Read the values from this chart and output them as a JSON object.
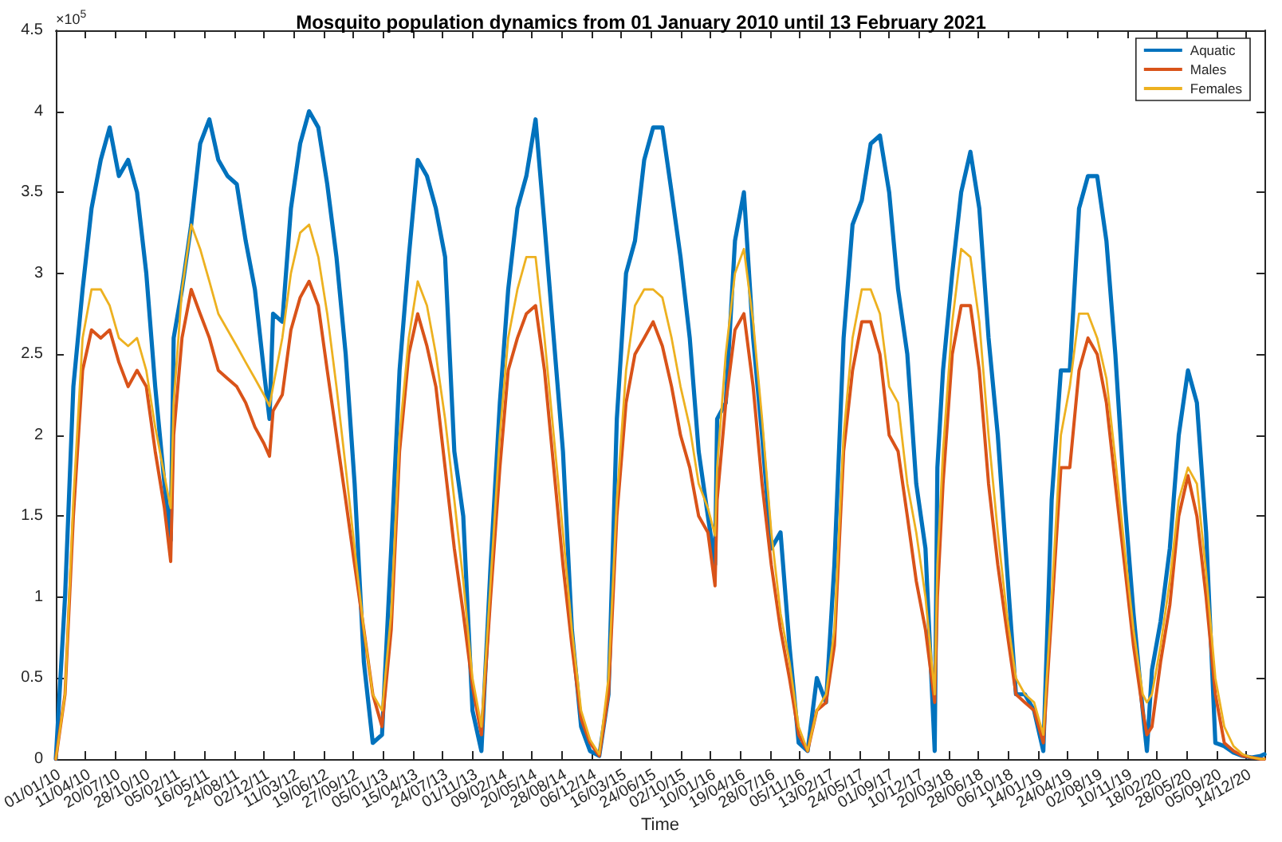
{
  "chart_data": {
    "type": "line",
    "title": "Mosquito population dynamics from 01 January 2010 until 13 February 2021",
    "xlabel": "Time",
    "annotations": [
      "×10$^{5}$"
    ],
    "x": [
      "2010-01-01",
      "2010-02-01",
      "2010-03-01",
      "2010-04-01",
      "2010-05-01",
      "2010-06-01",
      "2010-07-01",
      "2010-08-01",
      "2010-09-01",
      "2010-10-01",
      "2010-11-01",
      "2010-12-01",
      "2011-01-01",
      "2011-01-22",
      "2011-02-01",
      "2011-03-01",
      "2011-04-01",
      "2011-05-01",
      "2011-06-01",
      "2011-07-01",
      "2011-08-01",
      "2011-09-01",
      "2011-10-01",
      "2011-11-01",
      "2011-12-01",
      "2011-12-20",
      "2012-01-01",
      "2012-02-01",
      "2012-03-01",
      "2012-04-01",
      "2012-05-01",
      "2012-06-01",
      "2012-07-01",
      "2012-08-01",
      "2012-09-01",
      "2012-10-01",
      "2012-11-01",
      "2012-12-01",
      "2013-01-01",
      "2013-02-01",
      "2013-03-01",
      "2013-04-01",
      "2013-05-01",
      "2013-06-01",
      "2013-07-01",
      "2013-08-01",
      "2013-09-01",
      "2013-10-01",
      "2013-11-01",
      "2013-12-01",
      "2014-01-01",
      "2014-02-01",
      "2014-03-01",
      "2014-04-01",
      "2014-05-01",
      "2014-06-01",
      "2014-07-01",
      "2014-08-01",
      "2014-09-01",
      "2014-10-01",
      "2014-11-01",
      "2014-12-01",
      "2015-01-01",
      "2015-02-01",
      "2015-03-01",
      "2015-04-01",
      "2015-05-01",
      "2015-06-01",
      "2015-07-01",
      "2015-08-01",
      "2015-09-01",
      "2015-10-01",
      "2015-11-01",
      "2015-12-01",
      "2016-01-01",
      "2016-01-25",
      "2016-02-01",
      "2016-03-01",
      "2016-04-01",
      "2016-05-01",
      "2016-06-01",
      "2016-07-01",
      "2016-08-01",
      "2016-09-01",
      "2016-10-01",
      "2016-11-01",
      "2016-12-01",
      "2017-01-01",
      "2017-02-01",
      "2017-03-01",
      "2017-04-01",
      "2017-05-01",
      "2017-06-01",
      "2017-07-01",
      "2017-08-01",
      "2017-09-01",
      "2017-10-01",
      "2017-11-01",
      "2017-12-01",
      "2018-01-01",
      "2018-02-01",
      "2018-02-10",
      "2018-03-01",
      "2018-04-01",
      "2018-05-01",
      "2018-06-01",
      "2018-07-01",
      "2018-08-01",
      "2018-09-01",
      "2018-10-01",
      "2018-11-01",
      "2018-12-01",
      "2019-01-01",
      "2019-02-01",
      "2019-03-01",
      "2019-04-01",
      "2019-05-01",
      "2019-06-01",
      "2019-07-01",
      "2019-08-01",
      "2019-09-01",
      "2019-10-01",
      "2019-11-01",
      "2019-12-01",
      "2020-01-01",
      "2020-01-15",
      "2020-02-01",
      "2020-03-01",
      "2020-04-01",
      "2020-05-01",
      "2020-06-01",
      "2020-07-01",
      "2020-08-01",
      "2020-09-01",
      "2020-10-01",
      "2020-11-01",
      "2020-12-01",
      "2021-01-01",
      "2021-02-01",
      "2021-02-13"
    ],
    "series": [
      {
        "name": "Aquatic",
        "color": "#0072bd",
        "values": [
          0,
          1.0,
          2.3,
          2.9,
          3.4,
          3.7,
          3.9,
          3.6,
          3.7,
          3.5,
          3.0,
          2.3,
          1.7,
          1.35,
          2.6,
          2.9,
          3.3,
          3.8,
          3.95,
          3.7,
          3.6,
          3.55,
          3.2,
          2.9,
          2.4,
          2.1,
          2.75,
          2.7,
          3.4,
          3.8,
          4.0,
          3.9,
          3.55,
          3.1,
          2.5,
          1.7,
          0.6,
          0.1,
          0.15,
          1.3,
          2.4,
          3.1,
          3.7,
          3.6,
          3.4,
          3.1,
          1.9,
          1.5,
          0.3,
          0.05,
          1.2,
          2.2,
          2.9,
          3.4,
          3.6,
          3.95,
          3.3,
          2.6,
          1.9,
          0.8,
          0.2,
          0.05,
          0.02,
          0.4,
          2.1,
          3.0,
          3.2,
          3.7,
          3.9,
          3.9,
          3.5,
          3.1,
          2.6,
          1.9,
          1.5,
          1.2,
          2.1,
          2.2,
          3.2,
          3.5,
          2.6,
          2.0,
          1.3,
          1.4,
          0.7,
          0.1,
          0.05,
          0.5,
          0.35,
          1.2,
          2.6,
          3.3,
          3.45,
          3.8,
          3.85,
          3.5,
          2.9,
          2.5,
          1.7,
          1.3,
          0.05,
          1.8,
          2.4,
          3.0,
          3.5,
          3.75,
          3.4,
          2.6,
          2.0,
          1.2,
          0.4,
          0.4,
          0.3,
          0.05,
          1.6,
          2.4,
          2.4,
          3.4,
          3.6,
          3.6,
          3.2,
          2.5,
          1.6,
          0.9,
          0.3,
          0.05,
          0.55,
          0.85,
          1.3,
          2.0,
          2.4,
          2.2,
          1.4,
          0.1,
          0.08,
          0.04,
          0.02,
          0.01,
          0.02,
          0.03
        ]
      },
      {
        "name": "Males",
        "color": "#d95319",
        "values": [
          0,
          0.4,
          1.5,
          2.4,
          2.65,
          2.6,
          2.65,
          2.45,
          2.3,
          2.4,
          2.3,
          1.9,
          1.55,
          1.22,
          2.0,
          2.6,
          2.9,
          2.75,
          2.6,
          2.4,
          2.35,
          2.3,
          2.2,
          2.05,
          1.95,
          1.87,
          2.15,
          2.25,
          2.65,
          2.85,
          2.95,
          2.8,
          2.4,
          2.0,
          1.6,
          1.2,
          0.8,
          0.4,
          0.2,
          0.8,
          1.9,
          2.5,
          2.75,
          2.55,
          2.3,
          1.8,
          1.3,
          0.9,
          0.45,
          0.15,
          1.0,
          1.8,
          2.4,
          2.6,
          2.75,
          2.8,
          2.4,
          1.8,
          1.2,
          0.7,
          0.25,
          0.1,
          0.02,
          0.4,
          1.5,
          2.2,
          2.5,
          2.6,
          2.7,
          2.55,
          2.3,
          2.0,
          1.8,
          1.5,
          1.4,
          1.07,
          1.6,
          2.2,
          2.65,
          2.75,
          2.3,
          1.7,
          1.2,
          0.8,
          0.5,
          0.15,
          0.05,
          0.3,
          0.35,
          0.7,
          1.9,
          2.4,
          2.7,
          2.7,
          2.5,
          2.0,
          1.9,
          1.5,
          1.1,
          0.8,
          0.35,
          1.0,
          1.7,
          2.5,
          2.8,
          2.8,
          2.4,
          1.7,
          1.2,
          0.8,
          0.4,
          0.35,
          0.3,
          0.1,
          0.9,
          1.8,
          1.8,
          2.4,
          2.6,
          2.5,
          2.2,
          1.7,
          1.2,
          0.7,
          0.3,
          0.15,
          0.2,
          0.6,
          0.95,
          1.5,
          1.75,
          1.5,
          1.0,
          0.4,
          0.1,
          0.05,
          0.02,
          0.01,
          0,
          0
        ]
      },
      {
        "name": "Females",
        "color": "#edb120",
        "values": [
          0,
          0.4,
          1.6,
          2.6,
          2.9,
          2.9,
          2.8,
          2.6,
          2.55,
          2.6,
          2.4,
          2.05,
          1.75,
          1.55,
          2.2,
          2.9,
          3.3,
          3.15,
          2.95,
          2.75,
          2.65,
          2.55,
          2.45,
          2.35,
          2.25,
          2.18,
          2.3,
          2.6,
          3.0,
          3.25,
          3.3,
          3.1,
          2.75,
          2.3,
          1.8,
          1.3,
          0.8,
          0.4,
          0.3,
          0.9,
          2.0,
          2.6,
          2.95,
          2.8,
          2.5,
          2.1,
          1.6,
          1.1,
          0.5,
          0.2,
          1.1,
          2.0,
          2.6,
          2.9,
          3.1,
          3.1,
          2.6,
          2.0,
          1.4,
          0.8,
          0.3,
          0.12,
          0.03,
          0.5,
          1.6,
          2.4,
          2.8,
          2.9,
          2.9,
          2.85,
          2.6,
          2.3,
          2.05,
          1.7,
          1.55,
          1.38,
          1.8,
          2.5,
          3.0,
          3.15,
          2.7,
          2.1,
          1.4,
          0.9,
          0.6,
          0.2,
          0.05,
          0.3,
          0.4,
          0.8,
          2.0,
          2.6,
          2.9,
          2.9,
          2.75,
          2.3,
          2.2,
          1.7,
          1.4,
          1.0,
          0.4,
          1.2,
          1.9,
          2.7,
          3.15,
          3.1,
          2.7,
          2.0,
          1.4,
          0.9,
          0.5,
          0.4,
          0.35,
          0.15,
          1.0,
          2.0,
          2.3,
          2.75,
          2.75,
          2.6,
          2.35,
          1.85,
          1.3,
          0.8,
          0.4,
          0.35,
          0.4,
          0.7,
          1.1,
          1.6,
          1.8,
          1.7,
          1.15,
          0.5,
          0.2,
          0.08,
          0.03,
          0.01,
          0,
          0
        ]
      }
    ],
    "xlim": [
      "2010-01-01",
      "2021-02-13"
    ],
    "xticks": [
      {
        "value": "2010-01-01",
        "label": "01/01/10"
      },
      {
        "value": "2010-04-11",
        "label": "11/04/10"
      },
      {
        "value": "2010-07-20",
        "label": "20/07/10"
      },
      {
        "value": "2010-10-28",
        "label": "28/10/10"
      },
      {
        "value": "2011-02-05",
        "label": "05/02/11"
      },
      {
        "value": "2011-05-16",
        "label": "16/05/11"
      },
      {
        "value": "2011-08-24",
        "label": "24/08/11"
      },
      {
        "value": "2011-12-02",
        "label": "02/12/11"
      },
      {
        "value": "2012-03-11",
        "label": "11/03/12"
      },
      {
        "value": "2012-06-19",
        "label": "19/06/12"
      },
      {
        "value": "2012-09-27",
        "label": "27/09/12"
      },
      {
        "value": "2013-01-05",
        "label": "05/01/13"
      },
      {
        "value": "2013-04-15",
        "label": "15/04/13"
      },
      {
        "value": "2013-07-24",
        "label": "24/07/13"
      },
      {
        "value": "2013-11-01",
        "label": "01/11/13"
      },
      {
        "value": "2014-02-09",
        "label": "09/02/14"
      },
      {
        "value": "2014-05-20",
        "label": "20/05/14"
      },
      {
        "value": "2014-08-28",
        "label": "28/08/14"
      },
      {
        "value": "2014-12-06",
        "label": "06/12/14"
      },
      {
        "value": "2015-03-16",
        "label": "16/03/15"
      },
      {
        "value": "2015-06-24",
        "label": "24/06/15"
      },
      {
        "value": "2015-10-02",
        "label": "02/10/15"
      },
      {
        "value": "2016-01-10",
        "label": "10/01/16"
      },
      {
        "value": "2016-04-19",
        "label": "19/04/16"
      },
      {
        "value": "2016-07-28",
        "label": "28/07/16"
      },
      {
        "value": "2016-11-05",
        "label": "05/11/16"
      },
      {
        "value": "2017-02-13",
        "label": "13/02/17"
      },
      {
        "value": "2017-05-24",
        "label": "24/05/17"
      },
      {
        "value": "2017-09-01",
        "label": "01/09/17"
      },
      {
        "value": "2017-12-10",
        "label": "10/12/17"
      },
      {
        "value": "2018-03-20",
        "label": "20/03/18"
      },
      {
        "value": "2018-06-28",
        "label": "28/06/18"
      },
      {
        "value": "2018-10-06",
        "label": "06/10/18"
      },
      {
        "value": "2019-01-14",
        "label": "14/01/19"
      },
      {
        "value": "2019-04-24",
        "label": "24/04/19"
      },
      {
        "value": "2019-08-02",
        "label": "02/08/19"
      },
      {
        "value": "2019-11-10",
        "label": "10/11/19"
      },
      {
        "value": "2020-02-18",
        "label": "18/02/20"
      },
      {
        "value": "2020-05-28",
        "label": "28/05/20"
      },
      {
        "value": "2020-09-05",
        "label": "05/09/20"
      },
      {
        "value": "2020-12-14",
        "label": "14/12/20"
      }
    ],
    "ylim": [
      0,
      4.5
    ],
    "yticks": [
      0,
      0.5,
      1,
      1.5,
      2,
      2.5,
      3,
      3.5,
      4,
      4.5
    ],
    "grid": false,
    "legend": "top right",
    "marker": "none",
    "line_style": "solid"
  }
}
